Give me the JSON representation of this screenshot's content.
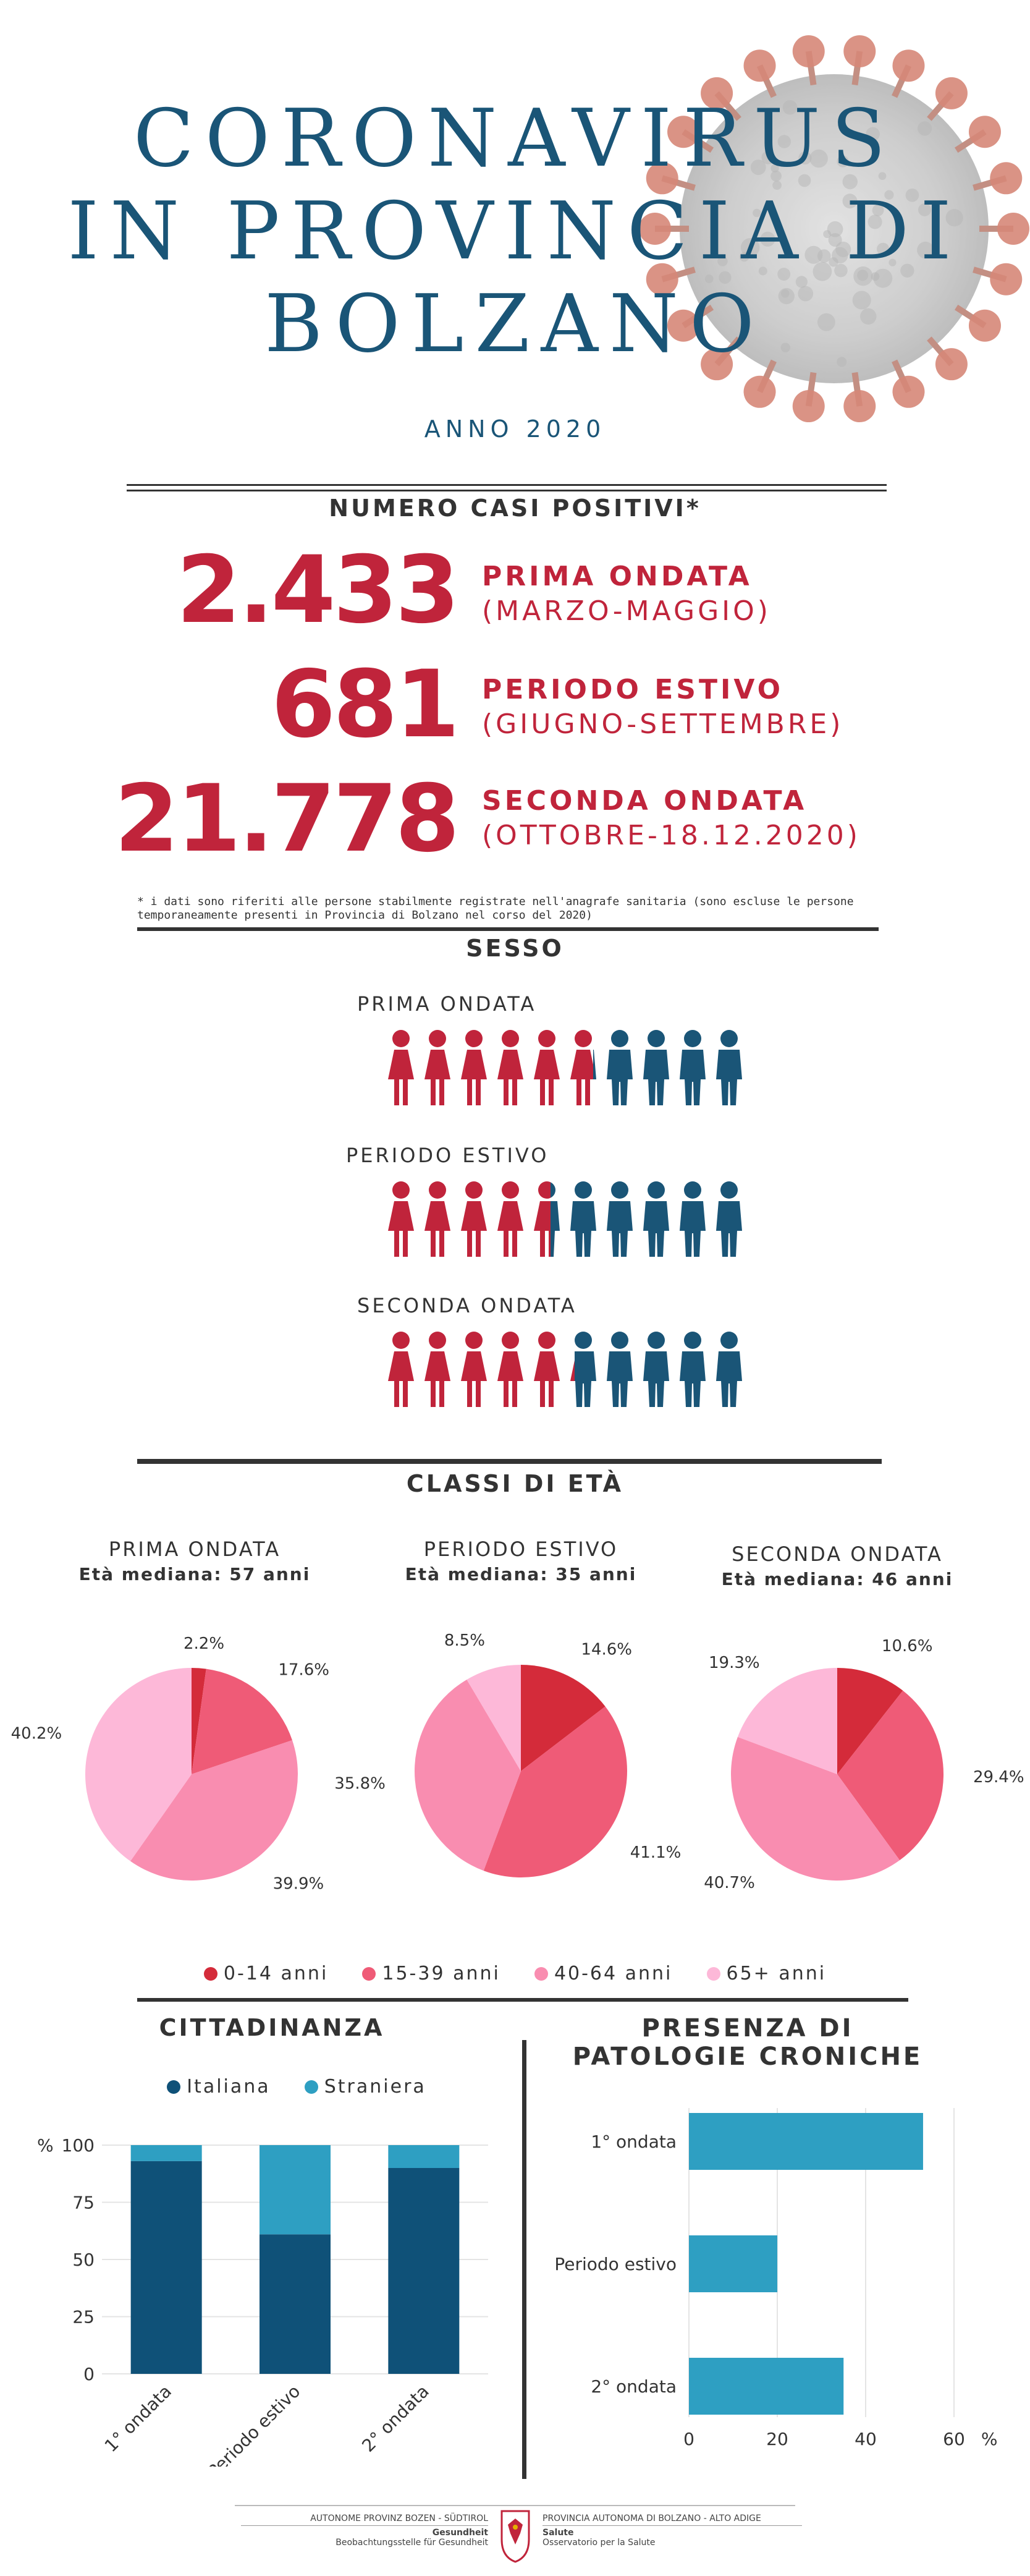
{
  "header": {
    "title_lines": [
      "CORONAVIRUS",
      "IN PROVINCIA DI",
      "BOLZANO"
    ],
    "year": "ANNO 2020"
  },
  "cases": {
    "title": "NUMERO CASI POSITIVI*",
    "rows": [
      {
        "number": "2.433",
        "label": "PRIMA ONDATA",
        "range": "(MARZO-MAGGIO)"
      },
      {
        "number": "681",
        "label": "PERIODO ESTIVO",
        "range": "(GIUGNO-SETTEMBRE)"
      },
      {
        "number": "21.778",
        "label": "SECONDA ONDATA",
        "range": "(OTTOBRE-18.12.2020)"
      }
    ],
    "footnote_1": "* i dati sono riferiti alle persone stabilmente registrate nell'anagrafe sanitaria (sono escluse le persone",
    "footnote_2": "temporaneamente presenti in Provincia di Bolzano nel corso del 2020)"
  },
  "sex": {
    "title": "SESSO",
    "female_color": "#c0243b",
    "male_color": "#1a5577",
    "waves": [
      {
        "label": "PRIMA ONDATA",
        "female_share": 0.58
      },
      {
        "label": "PERIODO ESTIVO",
        "female_share": 0.46
      },
      {
        "label": "SECONDA ONDATA",
        "female_share": 0.52
      }
    ]
  },
  "age": {
    "title": "CLASSI DI ETÀ",
    "legend": [
      "0-14 anni",
      "15-39 anni",
      "40-64 anni",
      "65+ anni"
    ],
    "colors": [
      "#d42b3a",
      "#ef5b77",
      "#f98db0",
      "#fdb8d8"
    ],
    "pies": [
      {
        "title": "PRIMA ONDATA",
        "subtitle": "Età mediana: 57 anni",
        "values": [
          2.2,
          17.6,
          39.9,
          40.2
        ],
        "labels": [
          "2.2%",
          "17.6%",
          "39.9%",
          "40.2%"
        ]
      },
      {
        "title": "PERIODO ESTIVO",
        "subtitle": "Età mediana: 35 anni",
        "values": [
          14.6,
          41.1,
          35.8,
          8.5
        ],
        "labels": [
          "14.6%",
          "41.1%",
          "35.8%",
          "8.5%"
        ]
      },
      {
        "title": "SECONDA ONDATA",
        "subtitle": "Età mediana: 46 anni",
        "values": [
          10.6,
          29.4,
          40.7,
          19.3
        ],
        "labels": [
          "10.6%",
          "29.4%",
          "40.7%",
          "19.3%"
        ]
      }
    ]
  },
  "citizenship": {
    "title": "CITTADINANZA",
    "legend": [
      "Italiana",
      "Straniera"
    ],
    "colors": [
      "#0f5178",
      "#2e9fc2"
    ],
    "categories": [
      "1° ondata",
      "Periodo estivo",
      "2° ondata"
    ],
    "italiana": [
      93,
      61,
      90
    ],
    "straniera": [
      7,
      39,
      10
    ],
    "unit": "%",
    "ticks": [
      "0",
      "25",
      "50",
      "75",
      "100"
    ]
  },
  "chronic": {
    "title_1": "PRESENZA DI",
    "title_2": "PATOLOGIE CRONICHE",
    "color": "#2e9fc2",
    "categories": [
      "1° ondata",
      "Periodo estivo",
      "2° ondata"
    ],
    "values": [
      53,
      20,
      35
    ],
    "ticks": [
      "0",
      "20",
      "40",
      "60"
    ],
    "unit": "%"
  },
  "footer": {
    "left_top": "AUTONOME PROVINZ BOZEN - SÜDTIROL",
    "left_1": "Gesundheit",
    "left_2": "Beobachtungsstelle für Gesundheit",
    "right_top": "PROVINCIA AUTONOMA DI BOLZANO - ALTO ADIGE",
    "right_1": "Salute",
    "right_2": "Osservatorio per la Salute"
  },
  "chart_data": [
    {
      "type": "pie",
      "title": "PRIMA ONDATA",
      "categories": [
        "0-14 anni",
        "15-39 anni",
        "40-64 anni",
        "65+ anni"
      ],
      "values": [
        2.2,
        17.6,
        39.9,
        40.2
      ]
    },
    {
      "type": "pie",
      "title": "PERIODO ESTIVO",
      "categories": [
        "0-14 anni",
        "15-39 anni",
        "40-64 anni",
        "65+ anni"
      ],
      "values": [
        14.6,
        41.1,
        35.8,
        8.5
      ]
    },
    {
      "type": "pie",
      "title": "SECONDA ONDATA",
      "categories": [
        "0-14 anni",
        "15-39 anni",
        "40-64 anni",
        "65+ anni"
      ],
      "values": [
        10.6,
        29.4,
        40.7,
        19.3
      ]
    },
    {
      "type": "bar",
      "title": "CITTADINANZA",
      "categories": [
        "1° ondata",
        "Periodo estivo",
        "2° ondata"
      ],
      "series": [
        {
          "name": "Italiana",
          "values": [
            93,
            61,
            90
          ]
        },
        {
          "name": "Straniera",
          "values": [
            7,
            39,
            10
          ]
        }
      ],
      "ylabel": "%",
      "ylim": [
        0,
        100
      ],
      "stacked": true
    },
    {
      "type": "bar",
      "title": "PRESENZA DI PATOLOGIE CRONICHE",
      "orientation": "horizontal",
      "categories": [
        "1° ondata",
        "Periodo estivo",
        "2° ondata"
      ],
      "values": [
        53,
        20,
        35
      ],
      "xlabel": "%",
      "xlim": [
        0,
        60
      ]
    }
  ]
}
